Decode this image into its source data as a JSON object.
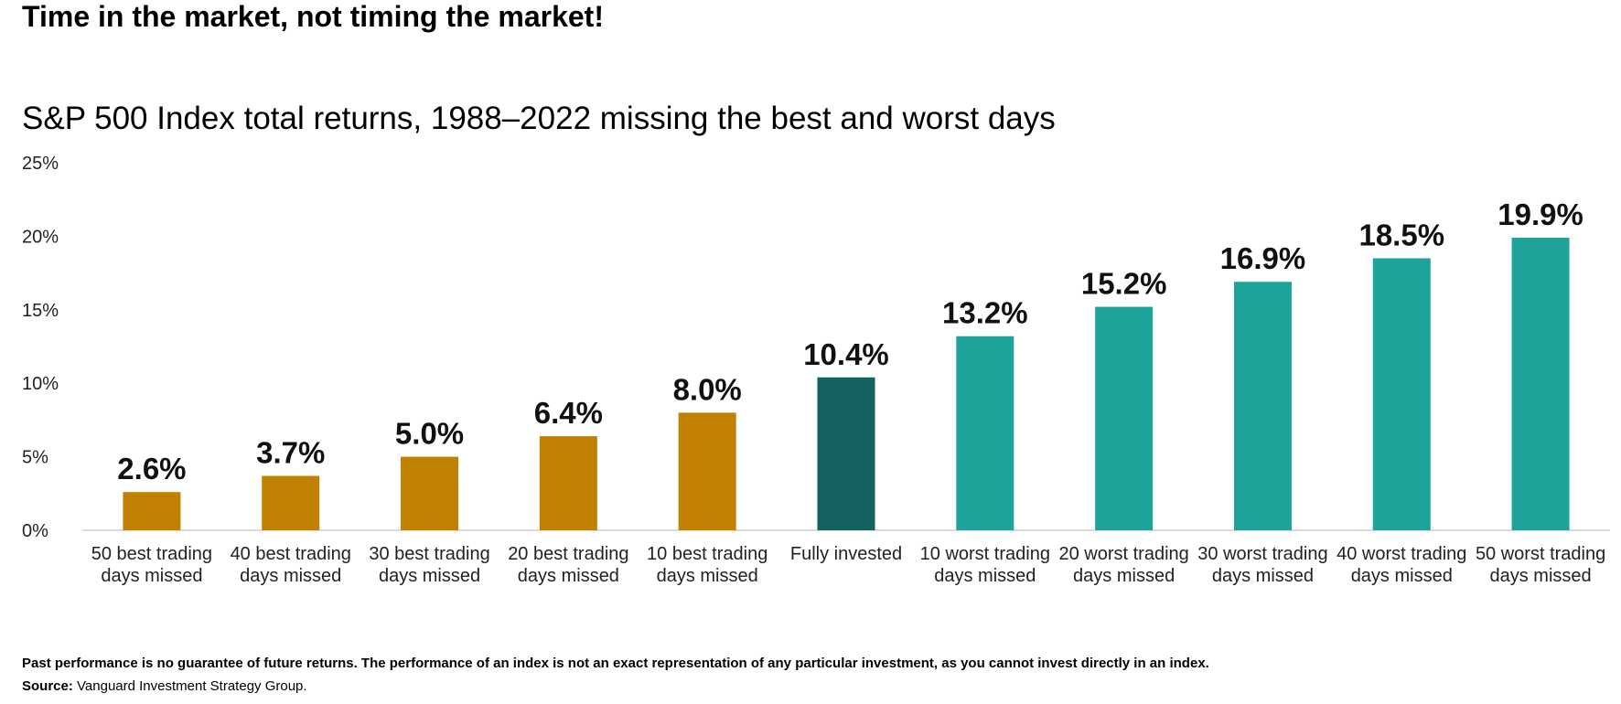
{
  "title": "Time in the market, not timing the market!",
  "subtitle": "S&P 500 Index total returns, 1988–2022 missing the best and worst days",
  "footnote": "Past performance is no guarantee of future returns. The performance of an index is not an exact representation of any particular investment, as you cannot invest directly in an index.",
  "source_label": "Source:",
  "source_text": " Vanguard Investment Strategy Group.",
  "colors": {
    "best_missed": "#C08100",
    "fully_invested": "#13625F",
    "worst_missed": "#1DA39A",
    "axis": "#d0d0d0"
  },
  "chart_data": {
    "type": "bar",
    "title": "S&P 500 Index total returns, 1988–2022 missing the best and worst days",
    "xlabel": "",
    "ylabel": "",
    "ylim": [
      0,
      25
    ],
    "yticks": [
      0,
      5,
      10,
      15,
      20,
      25
    ],
    "ytick_labels": [
      "0%",
      "5%",
      "10%",
      "15%",
      "20%",
      "25%"
    ],
    "grid": false,
    "categories": [
      [
        "50 best trading",
        "days missed"
      ],
      [
        "40 best trading",
        "days missed"
      ],
      [
        "30 best trading",
        "days missed"
      ],
      [
        "20 best trading",
        "days missed"
      ],
      [
        "10 best trading",
        "days missed"
      ],
      [
        "Fully invested"
      ],
      [
        "10 worst trading",
        "days missed"
      ],
      [
        "20 worst trading",
        "days missed"
      ],
      [
        "30 worst trading",
        "days missed"
      ],
      [
        "40 worst trading",
        "days missed"
      ],
      [
        "50 worst trading",
        "days missed"
      ]
    ],
    "values": [
      2.6,
      3.7,
      5.0,
      6.4,
      8.0,
      10.4,
      13.2,
      15.2,
      16.9,
      18.5,
      19.9
    ],
    "data_labels": [
      "2.6%",
      "3.7%",
      "5.0%",
      "6.4%",
      "8.0%",
      "10.4%",
      "13.2%",
      "15.2%",
      "16.9%",
      "18.5%",
      "19.9%"
    ],
    "bar_groups": [
      "best_missed",
      "best_missed",
      "best_missed",
      "best_missed",
      "best_missed",
      "fully_invested",
      "worst_missed",
      "worst_missed",
      "worst_missed",
      "worst_missed",
      "worst_missed"
    ]
  }
}
